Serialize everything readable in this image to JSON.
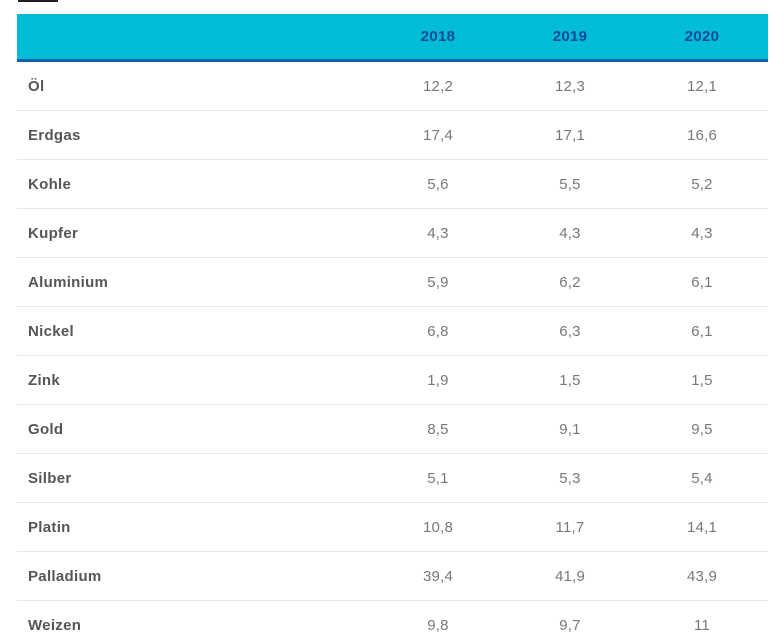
{
  "table": {
    "columns": [
      "2018",
      "2019",
      "2020"
    ],
    "rows": [
      {
        "label": "Öl",
        "values": [
          "12,2",
          "12,3",
          "12,1"
        ]
      },
      {
        "label": "Erdgas",
        "values": [
          "17,4",
          "17,1",
          "16,6"
        ]
      },
      {
        "label": "Kohle",
        "values": [
          "5,6",
          "5,5",
          "5,2"
        ]
      },
      {
        "label": "Kupfer",
        "values": [
          "4,3",
          "4,3",
          "4,3"
        ]
      },
      {
        "label": "Aluminium",
        "values": [
          "5,9",
          "6,2",
          "6,1"
        ]
      },
      {
        "label": "Nickel",
        "values": [
          "6,8",
          "6,3",
          "6,1"
        ]
      },
      {
        "label": "Zink",
        "values": [
          "1,9",
          "1,5",
          "1,5"
        ]
      },
      {
        "label": "Gold",
        "values": [
          "8,5",
          "9,1",
          "9,5"
        ]
      },
      {
        "label": "Silber",
        "values": [
          "5,1",
          "5,3",
          "5,4"
        ]
      },
      {
        "label": "Platin",
        "values": [
          "10,8",
          "11,7",
          "14,1"
        ]
      },
      {
        "label": "Palladium",
        "values": [
          "39,4",
          "41,9",
          "43,9"
        ]
      },
      {
        "label": "Weizen",
        "values": [
          "9,8",
          "9,7",
          "11"
        ]
      }
    ]
  },
  "chart_data": {
    "type": "table",
    "categories": [
      "Öl",
      "Erdgas",
      "Kohle",
      "Kupfer",
      "Aluminium",
      "Nickel",
      "Zink",
      "Gold",
      "Silber",
      "Platin",
      "Palladium",
      "Weizen"
    ],
    "series": [
      {
        "name": "2018",
        "values": [
          12.2,
          17.4,
          5.6,
          4.3,
          5.9,
          6.8,
          1.9,
          8.5,
          5.1,
          10.8,
          39.4,
          9.8
        ]
      },
      {
        "name": "2019",
        "values": [
          12.3,
          17.1,
          5.5,
          4.3,
          6.2,
          6.3,
          1.5,
          9.1,
          5.3,
          11.7,
          41.9,
          9.7
        ]
      },
      {
        "name": "2020",
        "values": [
          12.1,
          16.6,
          5.2,
          4.3,
          6.1,
          6.1,
          1.5,
          9.5,
          5.4,
          14.1,
          43.9,
          11
        ]
      }
    ],
    "title": "",
    "legend_position": "header-row",
    "grid": "horizontal-separators"
  },
  "colors": {
    "header_bg": "#00bcd4",
    "header_text": "#0d4a9c",
    "header_border": "#1060b0",
    "row_label_text": "#55565a",
    "row_value_text": "#77787b",
    "separator": "#e9e9ec",
    "top_dash": "#1f1f1f"
  }
}
